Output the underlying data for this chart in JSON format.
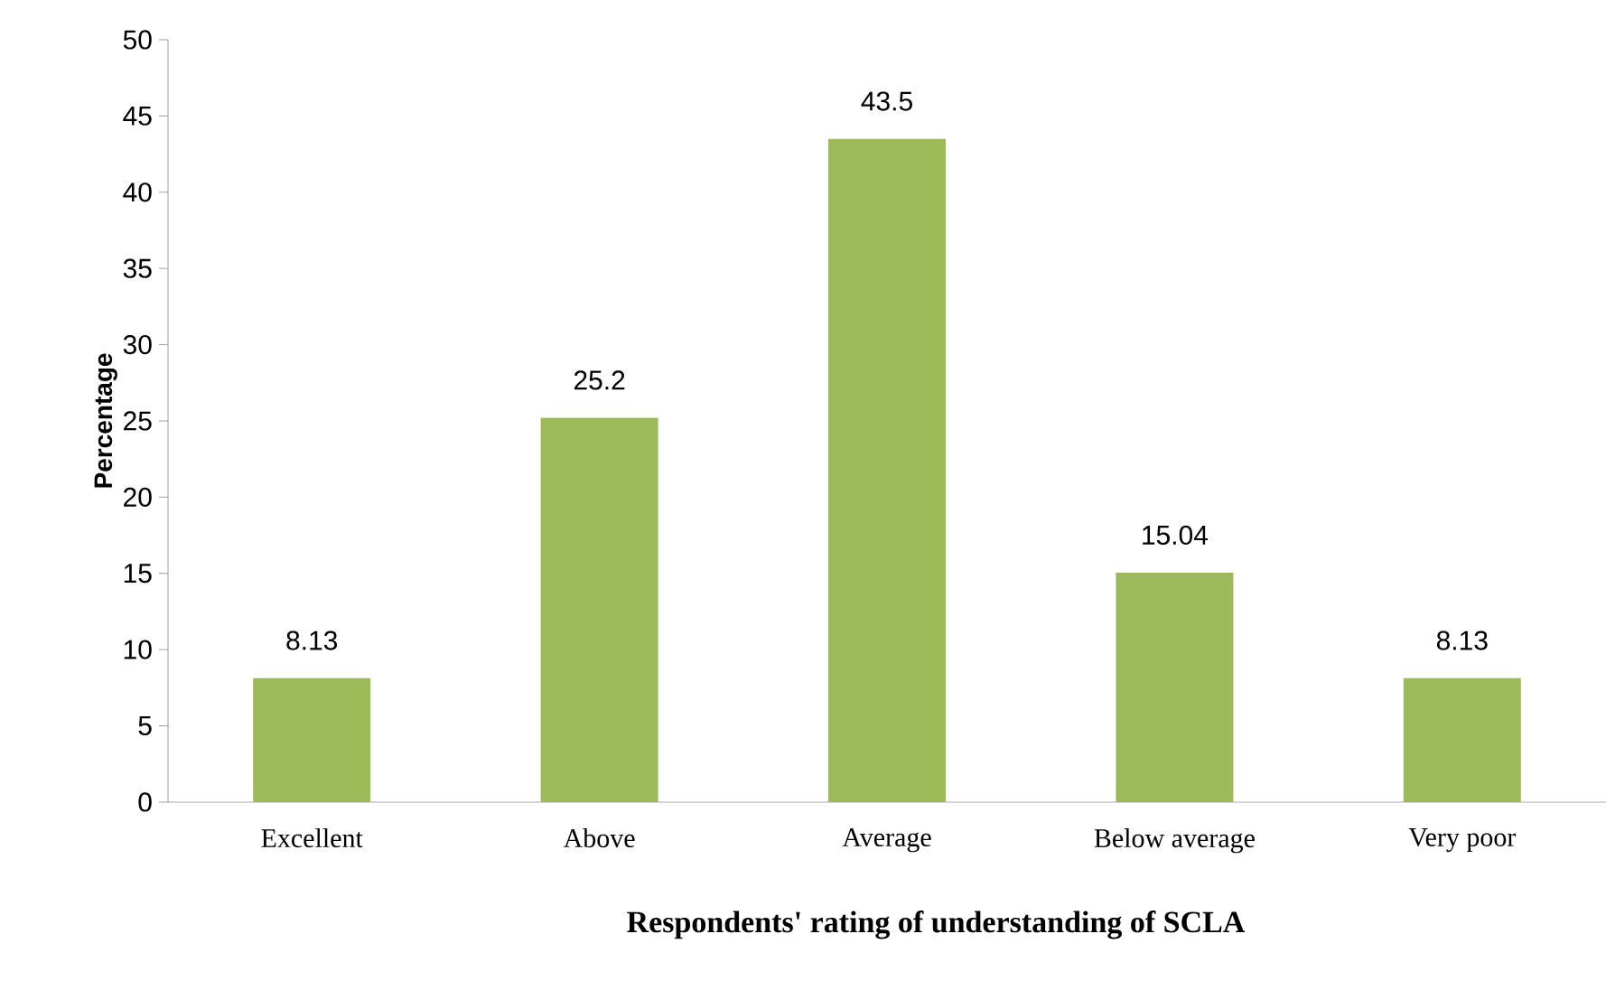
{
  "chart_data": {
    "type": "bar",
    "xlabel": "Respondents' rating of understanding of SCLA",
    "ylabel": "Percentage",
    "categories": [
      "Excellent",
      "Above",
      "Average",
      "Below average",
      "Very poor"
    ],
    "values": [
      8.13,
      25.2,
      43.5,
      15.04,
      8.13
    ],
    "color": "#9bbb59",
    "ylim": [
      0,
      50
    ],
    "yticks": [
      0,
      5,
      10,
      15,
      20,
      25,
      30,
      35,
      40,
      45,
      50
    ],
    "data_labels": true,
    "grid": false
  }
}
